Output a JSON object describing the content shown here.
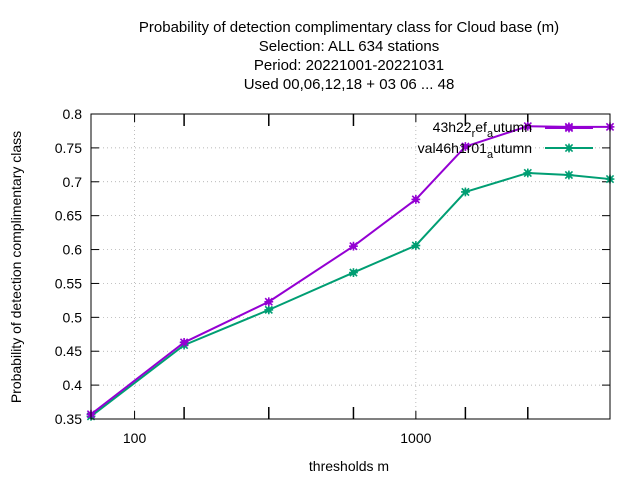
{
  "chart_data": {
    "type": "line",
    "title_lines": [
      "Probability of detection complimentary class  for Cloud base (m)",
      "Selection: ALL     634 stations",
      "Period: 20221001-20221031",
      "Used  00,06,12,18  + 03 06 ... 48"
    ],
    "xlabel": "thresholds m",
    "ylabel": "Probability of detection complimentary class",
    "x_scale": "log",
    "xlim": [
      70,
      4900
    ],
    "ylim": [
      0.35,
      0.8
    ],
    "x_tick_labels": [
      {
        "value": 100,
        "label": "100"
      },
      {
        "value": 1000,
        "label": "1000"
      }
    ],
    "x_minor_ticks": [
      150,
      300,
      600,
      1500,
      2500
    ],
    "y_ticks": [
      {
        "value": 0.35,
        "label": "0.35"
      },
      {
        "value": 0.4,
        "label": "0.4"
      },
      {
        "value": 0.45,
        "label": "0.45"
      },
      {
        "value": 0.5,
        "label": "0.5"
      },
      {
        "value": 0.55,
        "label": "0.55"
      },
      {
        "value": 0.6,
        "label": "0.6"
      },
      {
        "value": 0.65,
        "label": "0.65"
      },
      {
        "value": 0.7,
        "label": "0.7"
      },
      {
        "value": 0.75,
        "label": "0.75"
      },
      {
        "value": 0.8,
        "label": "0.8"
      }
    ],
    "grid": true,
    "legend_position": "top-right",
    "x": [
      70,
      150,
      300,
      600,
      1000,
      1500,
      2500,
      3500,
      4900
    ],
    "series": [
      {
        "name_main": "43h22",
        "name_sub1": "r",
        "name_mid": "ef",
        "name_sub2": "a",
        "name_end": "utumn",
        "color": "#9400d3",
        "values": [
          0.357,
          0.463,
          0.523,
          0.605,
          0.674,
          0.752,
          0.782,
          0.781,
          0.781
        ]
      },
      {
        "name_main": "val46h1r01",
        "name_sub1": "",
        "name_mid": "",
        "name_sub2": "a",
        "name_end": "utumn",
        "color": "#009e73",
        "values": [
          0.354,
          0.459,
          0.511,
          0.566,
          0.606,
          0.685,
          0.713,
          0.71,
          0.704
        ]
      }
    ]
  }
}
